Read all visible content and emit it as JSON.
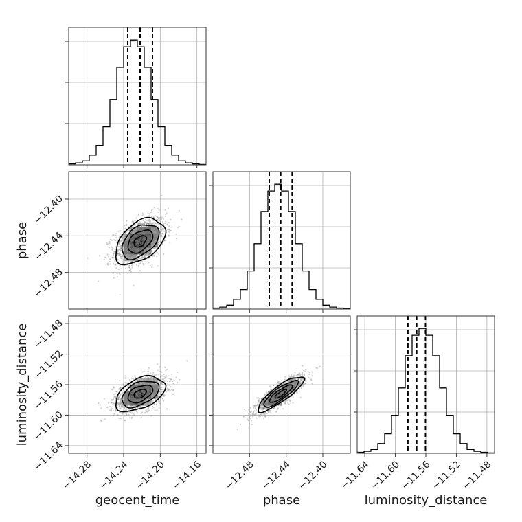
{
  "chart_data": {
    "type": "corner",
    "grid": true,
    "parameters": [
      {
        "name": "geocent_time",
        "label": "geocent_time",
        "range": [
          -14.3,
          -14.15
        ],
        "ticks": [
          -14.28,
          -14.24,
          -14.2,
          -14.16
        ],
        "tick_labels": [
          "−14.28",
          "−14.24",
          "−14.20",
          "−14.16"
        ]
      },
      {
        "name": "phase",
        "label": "phase",
        "range": [
          -12.52,
          -12.37
        ],
        "ticks": [
          -12.48,
          -12.44,
          -12.4
        ],
        "tick_labels": [
          "−12.48",
          "−12.44",
          "−12.40"
        ]
      },
      {
        "name": "luminosity_distance",
        "label": "luminosity_distance",
        "range": [
          -11.65,
          -11.47
        ],
        "ticks": [
          -11.64,
          -11.6,
          -11.56,
          -11.52,
          -11.48
        ],
        "tick_labels": [
          "−11.64",
          "−11.60",
          "−11.56",
          "−11.52",
          "−11.48"
        ]
      }
    ],
    "histograms": [
      {
        "parameter": "geocent_time",
        "bins": 20,
        "counts": [
          1,
          2,
          4,
          10,
          20,
          39,
          67,
          100,
          121,
          128,
          121,
          100,
          67,
          39,
          20,
          10,
          4,
          2,
          1,
          0.4
        ],
        "quantiles": [
          -14.2355,
          -14.222,
          -14.2085
        ]
      },
      {
        "parameter": "phase",
        "bins": 20,
        "counts": [
          1,
          2,
          4,
          10,
          20,
          39,
          67,
          100,
          121,
          128,
          121,
          100,
          67,
          39,
          20,
          10,
          4,
          2,
          1,
          0.4
        ],
        "quantiles": [
          -12.4585,
          -12.446,
          -12.4335
        ]
      },
      {
        "parameter": "luminosity_distance",
        "bins": 20,
        "counts": [
          1,
          2,
          4,
          10,
          20,
          39,
          67,
          100,
          121,
          128,
          121,
          100,
          67,
          39,
          20,
          10,
          4,
          2,
          1,
          0.4
        ],
        "quantiles": [
          -11.5835,
          -11.572,
          -11.5605
        ]
      },
      {
        "parameter": "__unused__",
        "bins": 0,
        "counts": [],
        "quantiles": []
      }
    ],
    "pairs": [
      {
        "x": "geocent_time",
        "y": "phase",
        "mean": [
          -14.222,
          -12.446
        ],
        "sigma": [
          0.0135,
          0.0125
        ],
        "correlation": 0.45,
        "peak": [
          -14.222,
          -12.449
        ]
      },
      {
        "x": "geocent_time",
        "y": "luminosity_distance",
        "mean": [
          -14.222,
          -11.572
        ],
        "sigma": [
          0.0135,
          0.0115
        ],
        "correlation": 0.45,
        "peak": [
          -14.222,
          -11.574
        ]
      },
      {
        "x": "phase",
        "y": "luminosity_distance",
        "mean": [
          -12.446,
          -11.572
        ],
        "sigma": [
          0.0125,
          0.0115
        ],
        "correlation": 0.85,
        "peak": [
          -12.449,
          -11.574
        ]
      }
    ],
    "contour_levels_sigma": [
      0.5,
      1.0,
      1.5,
      2.0
    ],
    "colors": {
      "lines": "#000000",
      "grid": "#b0b0b0",
      "points": "#777777"
    }
  }
}
